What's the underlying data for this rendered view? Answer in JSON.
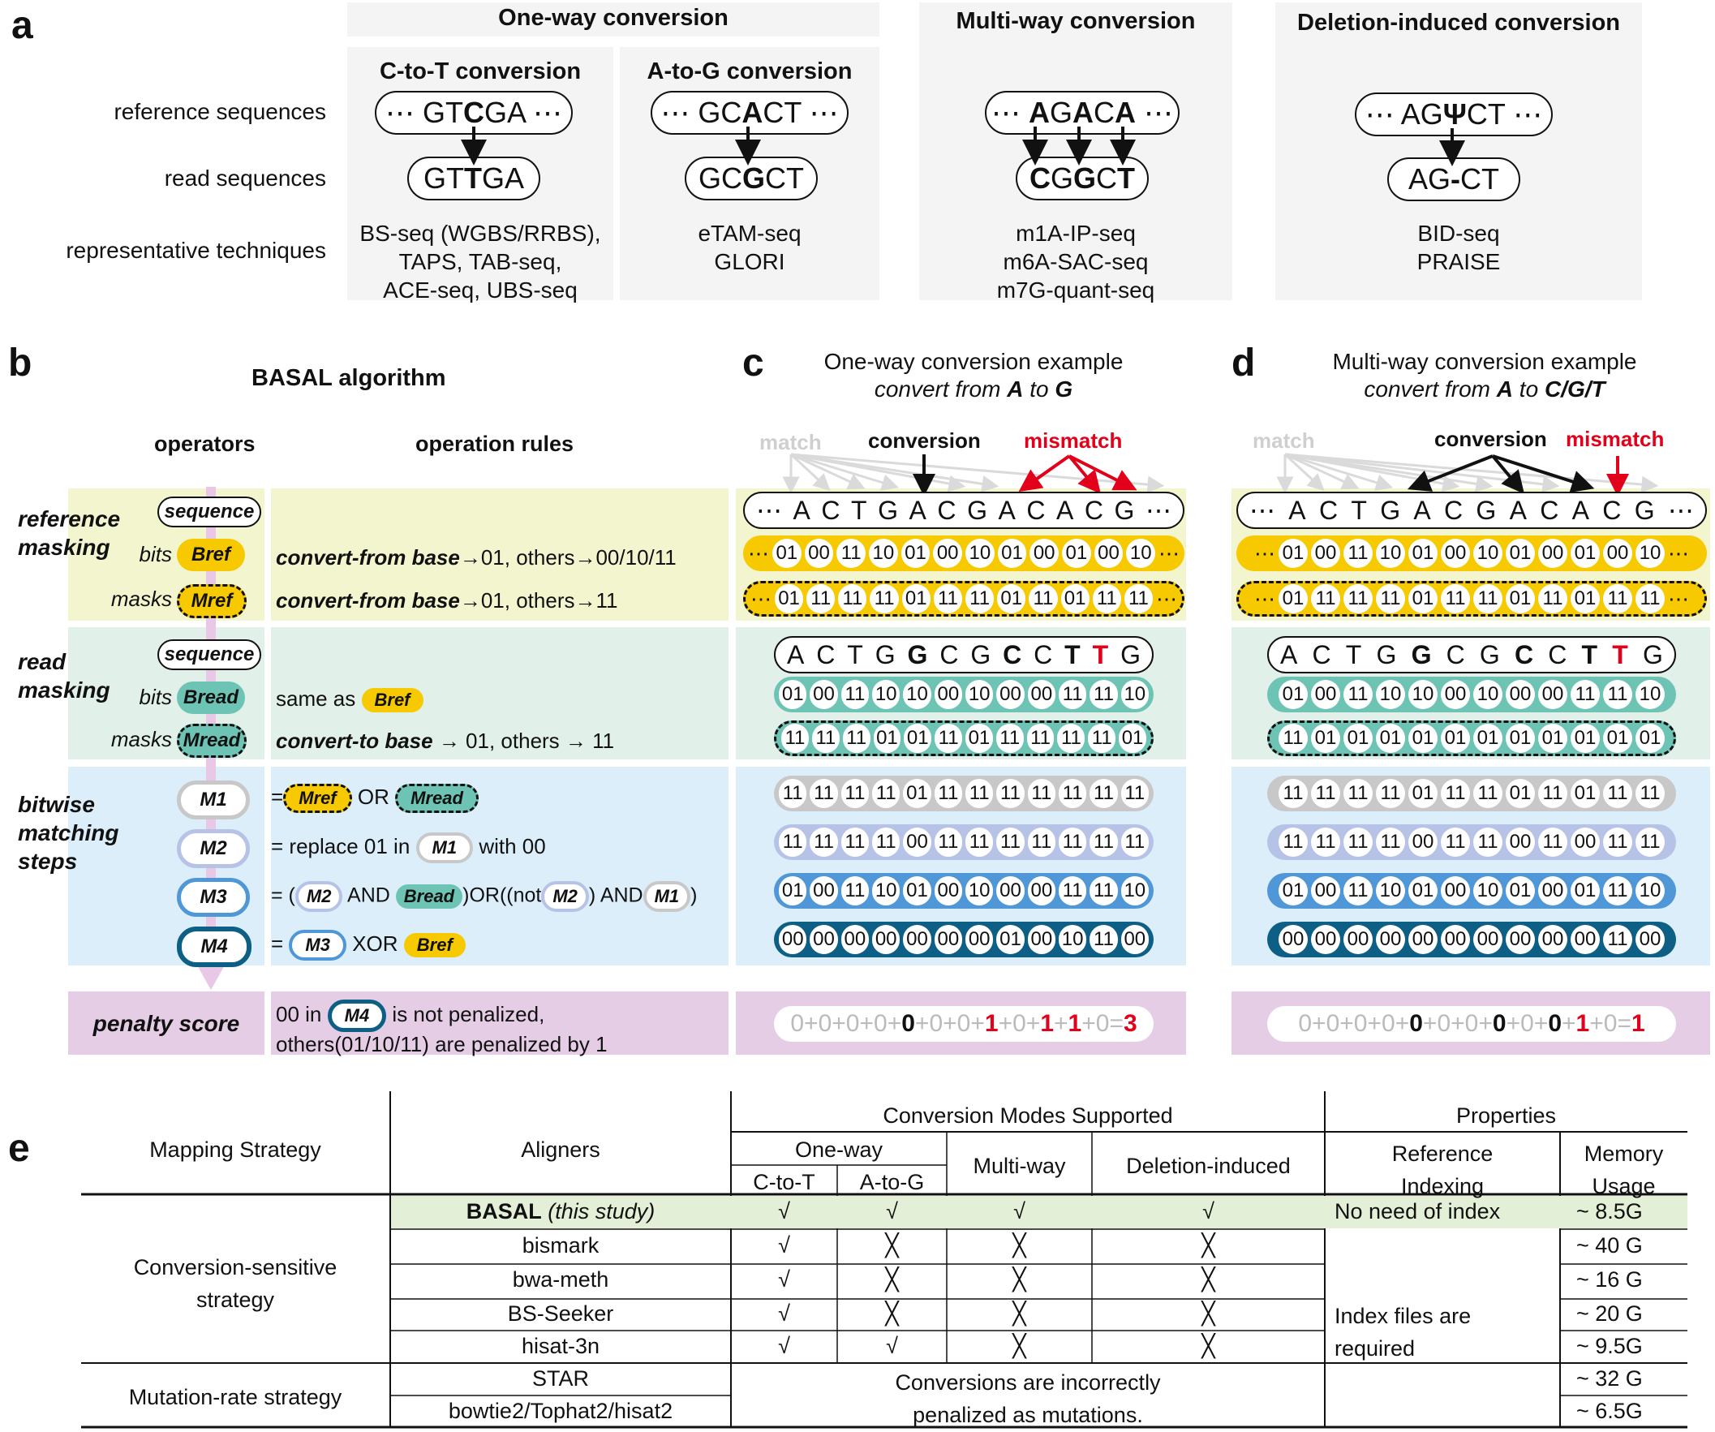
{
  "panel_a": {
    "letter": "a",
    "one_way_title": "One-way conversion",
    "multi_way_title": "Multi-way conversion",
    "deletion_title": "Deletion-induced conversion",
    "ct_title": "C-to-T conversion",
    "ag_title": "A-to-G conversion",
    "row_labels": [
      "reference sequences",
      "read sequences",
      "representative techniques"
    ],
    "ct_ref": [
      "⋯ GT",
      "C",
      "GA ⋯"
    ],
    "ct_read": [
      "GT",
      "T",
      "GA"
    ],
    "ag_ref": [
      "⋯ GC",
      "A",
      "CT ⋯"
    ],
    "ag_read": [
      "GC",
      "G",
      "CT"
    ],
    "mw_ref": "⋯ AGACA ⋯",
    "mw_read": "CGGCT",
    "del_ref": [
      "⋯ AG",
      "Ψ",
      "CT ⋯"
    ],
    "del_read": [
      "AG",
      "-",
      "CT"
    ],
    "ct_tech": [
      "BS-seq (WGBS/RRBS),",
      "TAPS, TAB-seq,",
      "ACE-seq, UBS-seq"
    ],
    "ag_tech": [
      "eTAM-seq",
      "GLORI"
    ],
    "mw_tech": [
      "m1A-IP-seq",
      "m6A-SAC-seq",
      "m7G-quant-seq"
    ],
    "del_tech": [
      "BID-seq",
      "PRAISE"
    ]
  },
  "panel_b": {
    "letter": "b",
    "title": "BASAL algorithm",
    "col_operators": "operators",
    "col_rules": "operation rules",
    "ref_masking": "reference masking",
    "read_masking": "read masking",
    "bitwise": "bitwise matching steps",
    "penalty": "penalty score",
    "sequence": "sequence",
    "bits": "bits",
    "masks": "masks",
    "bref": "Bref",
    "mref": "Mref",
    "bread": "Bread",
    "mread": "Mread",
    "m1": "M1",
    "m2": "M2",
    "m3": "M3",
    "m4": "M4",
    "rule_bref_bold": "convert-from base",
    "rule_bref_rest": "→01, others→00/10/11",
    "rule_mref_bold": "convert-from base",
    "rule_mref_rest": "→01, others→11",
    "rule_bread": "same as",
    "rule_mread_bold": "convert-to base",
    "rule_mread_rest": " → 01, others → 11",
    "rule_m1_eq": "=",
    "rule_m1_or": "OR",
    "rule_m2_a": "=  replace 01 in",
    "rule_m2_b": "with 00",
    "rule_m3_a": "= (",
    "rule_m3_and": "AND",
    "rule_m3_or": ")OR((not",
    "rule_m3_and2": ") AND",
    "rule_m3_end": ")",
    "rule_m4_eq": "=",
    "rule_m4_xor": "XOR",
    "penalty_a": "00 in",
    "penalty_b": "is not penalized,",
    "penalty_c": "others(01/10/11) are penalized by 1"
  },
  "panel_c": {
    "letter": "c",
    "title": "One-way conversion example",
    "subtitle_pre": "convert from ",
    "subtitle_a": "A",
    "subtitle_mid": " to ",
    "subtitle_b": "G",
    "match": "match",
    "conversion": "conversion",
    "mismatch": "mismatch",
    "ref_seq": [
      "A",
      "C",
      "T",
      "G",
      "A",
      "C",
      "G",
      "A",
      "C",
      "A",
      "C",
      "G"
    ],
    "bref": [
      "01",
      "00",
      "11",
      "10",
      "01",
      "00",
      "10",
      "01",
      "00",
      "01",
      "00",
      "10"
    ],
    "mref": [
      "01",
      "11",
      "11",
      "11",
      "01",
      "11",
      "11",
      "01",
      "11",
      "01",
      "11",
      "11"
    ],
    "read_seq": [
      "A",
      "C",
      "T",
      "G",
      "G",
      "C",
      "G",
      "C",
      "C",
      "T",
      "T",
      "G"
    ],
    "bread": [
      "01",
      "00",
      "11",
      "10",
      "10",
      "00",
      "10",
      "00",
      "00",
      "11",
      "11",
      "10"
    ],
    "mread": [
      "11",
      "11",
      "11",
      "01",
      "01",
      "11",
      "01",
      "11",
      "11",
      "11",
      "11",
      "01"
    ],
    "m1": [
      "11",
      "11",
      "11",
      "11",
      "01",
      "11",
      "11",
      "11",
      "11",
      "11",
      "11",
      "11"
    ],
    "m2": [
      "11",
      "11",
      "11",
      "11",
      "00",
      "11",
      "11",
      "11",
      "11",
      "11",
      "11",
      "11"
    ],
    "m3": [
      "01",
      "00",
      "11",
      "10",
      "01",
      "00",
      "10",
      "00",
      "00",
      "11",
      "11",
      "10"
    ],
    "m4": [
      "00",
      "00",
      "00",
      "00",
      "00",
      "00",
      "00",
      "01",
      "00",
      "10",
      "11",
      "00"
    ],
    "score_terms": [
      "0",
      "0",
      "0",
      "0",
      "0",
      "0",
      "0",
      "1",
      "0",
      "1",
      "1",
      "0"
    ],
    "score_total": "3"
  },
  "panel_d": {
    "letter": "d",
    "title": "Multi-way conversion example",
    "subtitle_pre": "convert from ",
    "subtitle_a": "A",
    "subtitle_mid": " to ",
    "subtitle_b": "C/G/T",
    "match": "match",
    "conversion": "conversion",
    "mismatch": "mismatch",
    "ref_seq": [
      "A",
      "C",
      "T",
      "G",
      "A",
      "C",
      "G",
      "A",
      "C",
      "A",
      "C",
      "G"
    ],
    "bref": [
      "01",
      "00",
      "11",
      "10",
      "01",
      "00",
      "10",
      "01",
      "00",
      "01",
      "00",
      "10"
    ],
    "mref": [
      "01",
      "11",
      "11",
      "11",
      "01",
      "11",
      "11",
      "01",
      "11",
      "01",
      "11",
      "11"
    ],
    "read_seq": [
      "A",
      "C",
      "T",
      "G",
      "G",
      "C",
      "G",
      "C",
      "C",
      "T",
      "T",
      "G"
    ],
    "bread": [
      "01",
      "00",
      "11",
      "10",
      "10",
      "00",
      "10",
      "00",
      "00",
      "11",
      "11",
      "10"
    ],
    "mread": [
      "11",
      "01",
      "01",
      "01",
      "01",
      "01",
      "01",
      "01",
      "01",
      "01",
      "01",
      "01"
    ],
    "m1": [
      "11",
      "11",
      "11",
      "11",
      "01",
      "11",
      "11",
      "01",
      "11",
      "01",
      "11",
      "11"
    ],
    "m2": [
      "11",
      "11",
      "11",
      "11",
      "00",
      "11",
      "11",
      "00",
      "11",
      "00",
      "11",
      "11"
    ],
    "m3": [
      "01",
      "00",
      "11",
      "10",
      "01",
      "00",
      "10",
      "01",
      "00",
      "01",
      "11",
      "10"
    ],
    "m4": [
      "00",
      "00",
      "00",
      "00",
      "00",
      "00",
      "00",
      "00",
      "00",
      "00",
      "11",
      "00"
    ],
    "score_terms": [
      "0",
      "0",
      "0",
      "0",
      "0",
      "0",
      "0",
      "0",
      "0",
      "0",
      "1",
      "0"
    ],
    "score_total": "1"
  },
  "panel_e": {
    "letter": "e",
    "h_strategy": "Mapping Strategy",
    "h_aligners": "Aligners",
    "h_modes": "Conversion Modes Supported",
    "h_properties": "Properties",
    "h_oneway": "One-way",
    "h_ct": "C-to-T",
    "h_ag": "A-to-G",
    "h_multi": "Multi-way",
    "h_del": "Deletion-induced",
    "h_ref_idx_1": "Reference",
    "h_ref_idx_2": "Indexing",
    "h_mem_1": "Memory",
    "h_mem_2": "Usage",
    "basal_name": "BASAL",
    "basal_note": "(this study)",
    "basal_index": "No  need  of index",
    "conv_sensitive_1": "Conversion-sensitive",
    "conv_sensitive_2": "strategy",
    "mutation_rate": "Mutation-rate strategy",
    "index_required_1": "Index files are",
    "index_required_2": "required",
    "incorrect_1": "Conversions are incorrectly",
    "incorrect_2": "penalized as mutations.",
    "check": "√",
    "cross": "╳",
    "rows": [
      {
        "name": "BASAL",
        "ct": "√",
        "ag": "√",
        "mw": "√",
        "del": "√",
        "mem": "~ 8.5G"
      },
      {
        "name": "bismark",
        "ct": "√",
        "ag": "╳",
        "mw": "╳",
        "del": "╳",
        "mem": "~ 40  G"
      },
      {
        "name": "bwa-meth",
        "ct": "√",
        "ag": "╳",
        "mw": "╳",
        "del": "╳",
        "mem": "~ 16  G"
      },
      {
        "name": "BS-Seeker",
        "ct": "√",
        "ag": "╳",
        "mw": "╳",
        "del": "╳",
        "mem": "~ 20  G"
      },
      {
        "name": "hisat-3n",
        "ct": "√",
        "ag": "√",
        "mw": "╳",
        "del": "╳",
        "mem": "~ 9.5G"
      },
      {
        "name": "STAR",
        "mem": "~ 32  G"
      },
      {
        "name": "bowtie2/Tophat2/hisat2",
        "mem": "~ 6.5G"
      }
    ]
  },
  "colors": {
    "ref_band": "#f3f5cf",
    "read_band": "#e2f0ea",
    "bitwise_band": "#dceefa",
    "penalty_band": "#e6cde6",
    "bref_yellow": "#f6c900",
    "bread_teal": "#6ec4b4",
    "m1_gray": "#c8c8c8",
    "m2_lavender": "#b7c3e6",
    "m3_blue": "#4f97d6",
    "m4_navy": "#0d5f86",
    "mismatch_red": "#e2001a",
    "basal_row": "#e3efd7"
  }
}
